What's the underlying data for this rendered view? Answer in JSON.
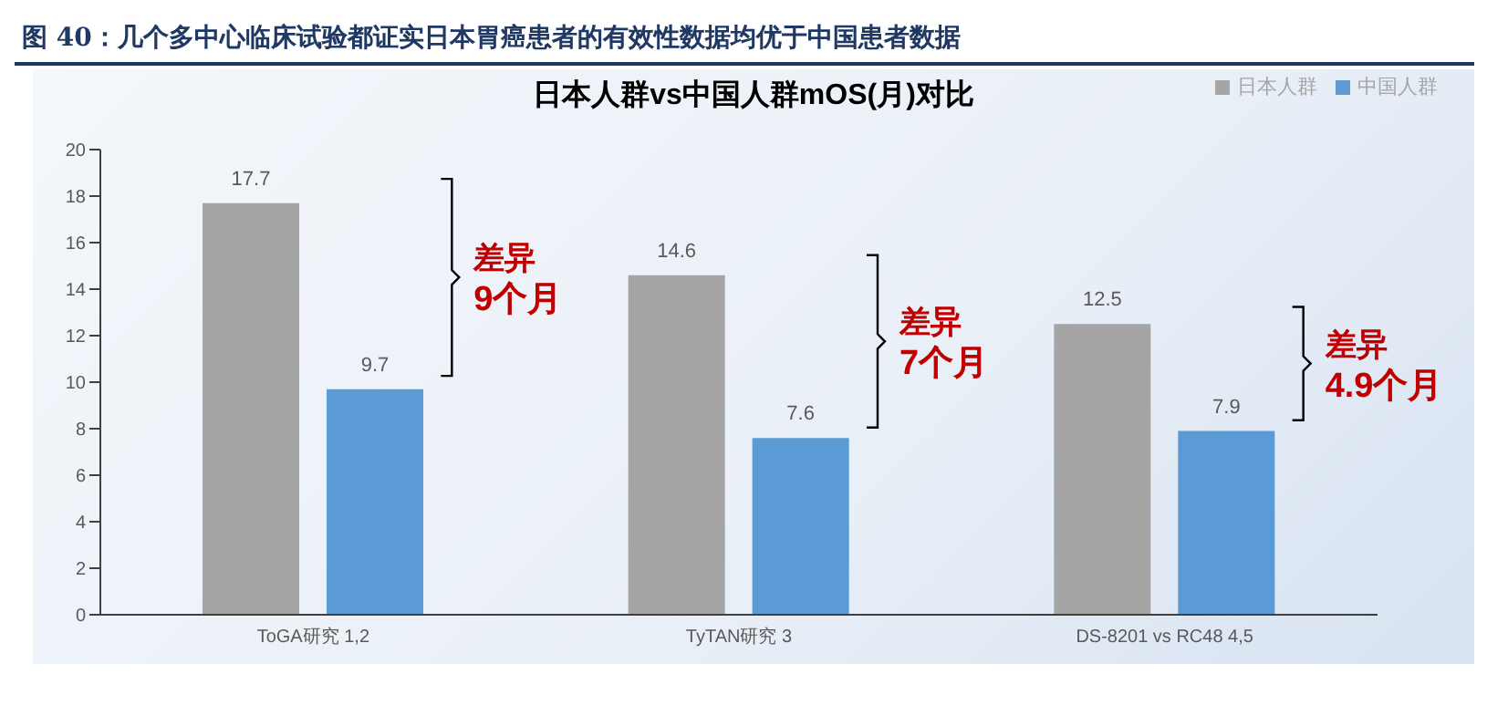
{
  "chart_data": {
    "type": "bar",
    "title": "图 40：几个多中心临床试验都证实日本胃癌患者的有效性数据均优于中国患者数据",
    "subtitle": "日本人群vs中国人群mOS(月)对比",
    "categories": [
      "ToGA研究   1,2",
      "TyTAN研究   3",
      "DS-8201 vs RC48      4,5"
    ],
    "series": [
      {
        "name": "日本人群",
        "color": "#a5a5a5",
        "values": [
          17.7,
          14.6,
          12.5
        ]
      },
      {
        "name": "中国人群",
        "color": "#5b9bd5",
        "values": [
          9.7,
          7.6,
          7.9
        ]
      }
    ],
    "ylim": [
      0,
      20
    ],
    "yticks": [
      0,
      2,
      4,
      6,
      8,
      10,
      12,
      14,
      16,
      18,
      20
    ],
    "legend": "top right",
    "data_labels": true,
    "annotations": [
      "差异 9个月",
      "差异 7个月",
      "差异 4.9个月"
    ]
  }
}
